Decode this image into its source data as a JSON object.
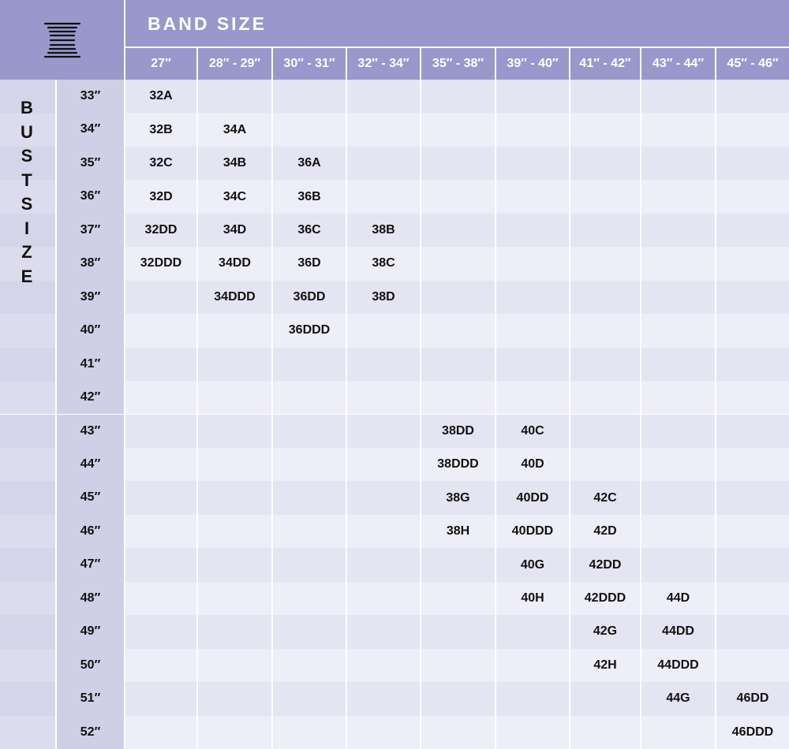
{
  "header": {
    "band_title": "BAND SIZE",
    "bust_title": "BUST SIZE",
    "logo_icon": "striped-hourglass-logo"
  },
  "band_sizes": [
    "27″",
    "28″ - 29″",
    "30″ - 31″",
    "32″ - 34″",
    "35″ - 38″",
    "39″ - 40″",
    "41″ - 42″",
    "43″ - 44″",
    "45″ - 46″"
  ],
  "rows": [
    {
      "bust": "33″",
      "cells": [
        "32A",
        "",
        "",
        "",
        "",
        "",
        "",
        "",
        ""
      ]
    },
    {
      "bust": "34″",
      "cells": [
        "32B",
        "34A",
        "",
        "",
        "",
        "",
        "",
        "",
        ""
      ]
    },
    {
      "bust": "35″",
      "cells": [
        "32C",
        "34B",
        "36A",
        "",
        "",
        "",
        "",
        "",
        ""
      ]
    },
    {
      "bust": "36″",
      "cells": [
        "32D",
        "34C",
        "36B",
        "",
        "",
        "",
        "",
        "",
        ""
      ]
    },
    {
      "bust": "37″",
      "cells": [
        "32DD",
        "34D",
        "36C",
        "38B",
        "",
        "",
        "",
        "",
        ""
      ]
    },
    {
      "bust": "38″",
      "cells": [
        "32DDD",
        "34DD",
        "36D",
        "38C",
        "",
        "",
        "",
        "",
        ""
      ]
    },
    {
      "bust": "39″",
      "cells": [
        "",
        "34DDD",
        "36DD",
        "38D",
        "",
        "",
        "",
        "",
        ""
      ]
    },
    {
      "bust": "40″",
      "cells": [
        "",
        "",
        "36DDD",
        "",
        "",
        "",
        "",
        "",
        ""
      ]
    },
    {
      "bust": "41″",
      "cells": [
        "",
        "",
        "",
        "",
        "",
        "",
        "",
        "",
        ""
      ]
    },
    {
      "bust": "42″",
      "cells": [
        "",
        "",
        "",
        "",
        "",
        "",
        "",
        "",
        ""
      ]
    },
    {
      "bust": "43″",
      "cells": [
        "",
        "",
        "",
        "",
        "38DD",
        "40C",
        "",
        "",
        ""
      ]
    },
    {
      "bust": "44″",
      "cells": [
        "",
        "",
        "",
        "",
        "38DDD",
        "40D",
        "",
        "",
        ""
      ]
    },
    {
      "bust": "45″",
      "cells": [
        "",
        "",
        "",
        "",
        "38G",
        "40DD",
        "42C",
        "",
        ""
      ]
    },
    {
      "bust": "46″",
      "cells": [
        "",
        "",
        "",
        "",
        "38H",
        "40DDD",
        "42D",
        "",
        ""
      ]
    },
    {
      "bust": "47″",
      "cells": [
        "",
        "",
        "",
        "",
        "",
        "40G",
        "42DD",
        "",
        ""
      ]
    },
    {
      "bust": "48″",
      "cells": [
        "",
        "",
        "",
        "",
        "",
        "40H",
        "42DDD",
        "44D",
        ""
      ]
    },
    {
      "bust": "49″",
      "cells": [
        "",
        "",
        "",
        "",
        "",
        "",
        "42G",
        "44DD",
        ""
      ]
    },
    {
      "bust": "50″",
      "cells": [
        "",
        "",
        "",
        "",
        "",
        "",
        "42H",
        "44DDD",
        ""
      ]
    },
    {
      "bust": "51″",
      "cells": [
        "",
        "",
        "",
        "",
        "",
        "",
        "",
        "44G",
        "46DD"
      ]
    },
    {
      "bust": "52″",
      "cells": [
        "",
        "",
        "",
        "",
        "",
        "",
        "",
        "",
        "46DDD"
      ]
    }
  ],
  "colors": {
    "header": "#9898cc",
    "row_a": "#e4e4f2",
    "row_b": "#eeeef8",
    "bust_col_a": "#d5d5ea",
    "bust_col_b": "#dcdcee",
    "label_col": "#cfcfe6"
  }
}
